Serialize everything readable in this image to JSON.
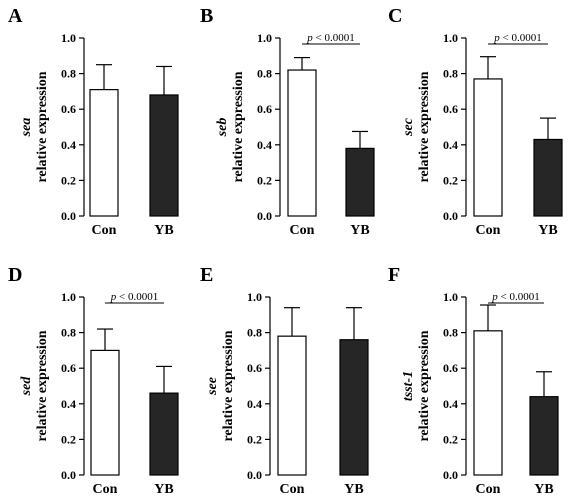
{
  "chart_data": [
    {
      "type": "bar",
      "panel": "A",
      "gene": "sea",
      "ylabel": "relative expression",
      "categories": [
        "Con",
        "YB"
      ],
      "values": [
        0.71,
        0.68
      ],
      "errors": [
        0.14,
        0.16
      ],
      "colors": [
        "#ffffff",
        "#262626"
      ],
      "ylim": [
        0,
        1.0
      ],
      "yticks": [
        "0.0",
        "0.2",
        "0.4",
        "0.6",
        "0.8",
        "1.0"
      ],
      "pvalue": null
    },
    {
      "type": "bar",
      "panel": "B",
      "gene": "seb",
      "ylabel": "relative expression",
      "categories": [
        "Con",
        "YB"
      ],
      "values": [
        0.82,
        0.38
      ],
      "errors": [
        0.07,
        0.095
      ],
      "colors": [
        "#ffffff",
        "#262626"
      ],
      "ylim": [
        0,
        1.0
      ],
      "yticks": [
        "0.0",
        "0.2",
        "0.4",
        "0.6",
        "0.8",
        "1.0"
      ],
      "pvalue": "< 0.0001"
    },
    {
      "type": "bar",
      "panel": "C",
      "gene": "sec",
      "ylabel": "relative expression",
      "categories": [
        "Con",
        "YB"
      ],
      "values": [
        0.77,
        0.43
      ],
      "errors": [
        0.125,
        0.12
      ],
      "colors": [
        "#ffffff",
        "#262626"
      ],
      "ylim": [
        0,
        1.0
      ],
      "yticks": [
        "0.0",
        "0.2",
        "0.4",
        "0.6",
        "0.8",
        "1.0"
      ],
      "pvalue": "< 0.0001"
    },
    {
      "type": "bar",
      "panel": "D",
      "gene": "sed",
      "ylabel": "relative expression",
      "categories": [
        "Con",
        "YB"
      ],
      "values": [
        0.7,
        0.46
      ],
      "errors": [
        0.12,
        0.15
      ],
      "colors": [
        "#ffffff",
        "#262626"
      ],
      "ylim": [
        0,
        1.0
      ],
      "yticks": [
        "0.0",
        "0.2",
        "0.4",
        "0.6",
        "0.8",
        "1.0"
      ],
      "pvalue": "< 0.0001"
    },
    {
      "type": "bar",
      "panel": "E",
      "gene": "see",
      "ylabel": "relative expression",
      "categories": [
        "Con",
        "YB"
      ],
      "values": [
        0.78,
        0.76
      ],
      "errors": [
        0.16,
        0.18
      ],
      "colors": [
        "#ffffff",
        "#262626"
      ],
      "ylim": [
        0,
        1.0
      ],
      "yticks": [
        "0.0",
        "0.2",
        "0.4",
        "0.6",
        "0.8",
        "1.0"
      ],
      "pvalue": null
    },
    {
      "type": "bar",
      "panel": "F",
      "gene": "tsst-1",
      "ylabel": "relative expression",
      "categories": [
        "Con",
        "YB"
      ],
      "values": [
        0.81,
        0.44
      ],
      "errors": [
        0.145,
        0.14
      ],
      "colors": [
        "#ffffff",
        "#262626"
      ],
      "ylim": [
        0,
        1.0
      ],
      "yticks": [
        "0.0",
        "0.2",
        "0.4",
        "0.6",
        "0.8",
        "1.0"
      ],
      "pvalue": "< 0.0001"
    }
  ],
  "pvalue_prefix": "p"
}
